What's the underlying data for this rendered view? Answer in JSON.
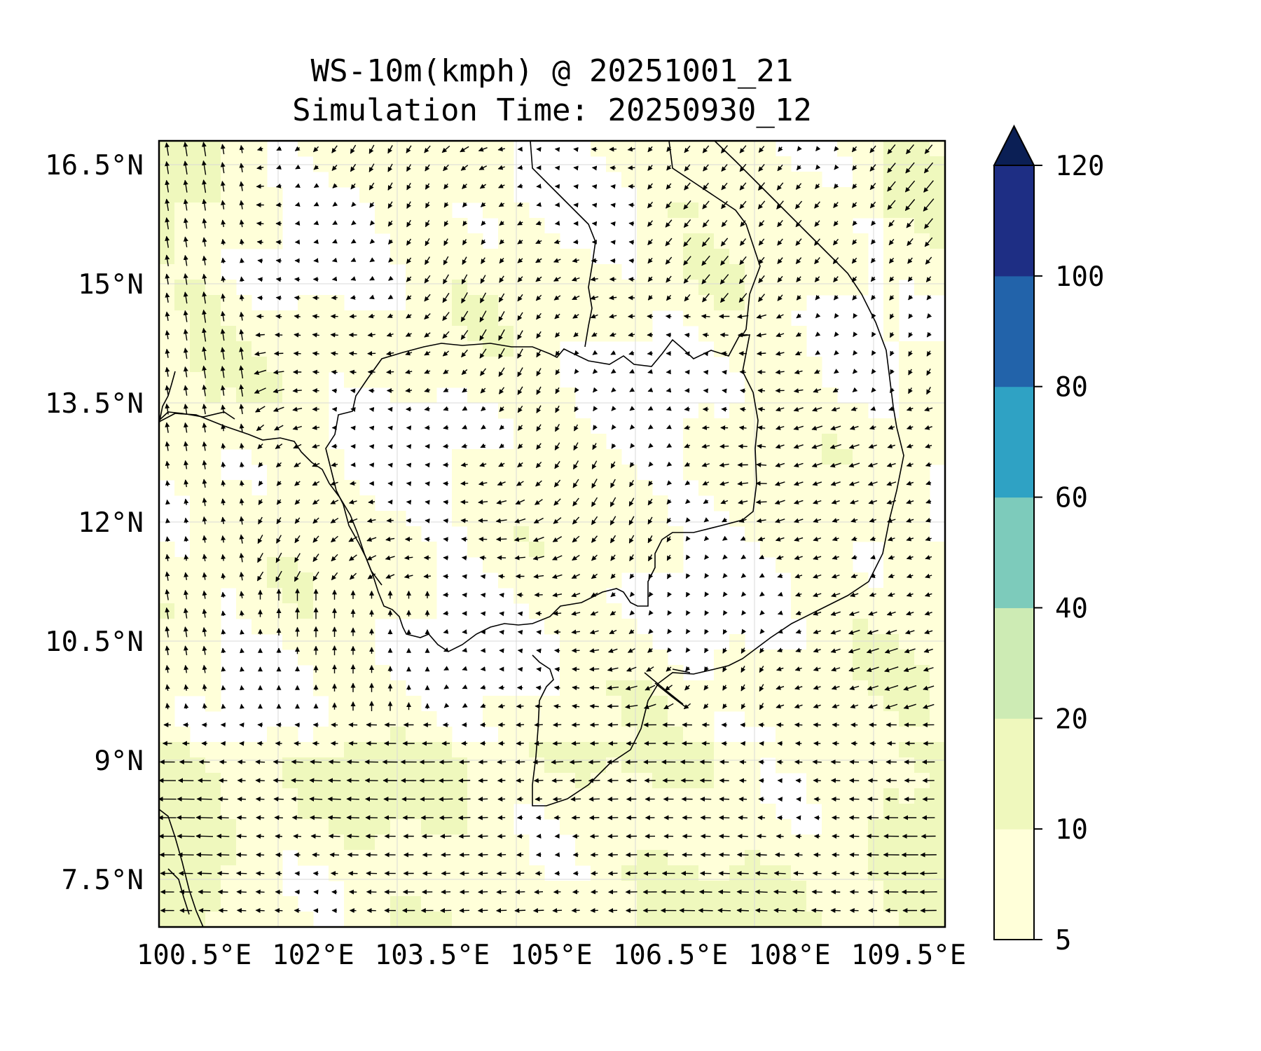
{
  "title_line1": "WS-10m(kmph) @ 20251001_21",
  "title_line2": "Simulation Time: 20250930_12",
  "chart_data": {
    "type": "map",
    "variable": "10 m wind speed with wind-direction vectors",
    "units": "kmph",
    "lon_range": [
      100.5,
      110.4
    ],
    "lat_range": [
      6.9,
      16.8
    ],
    "lon_ticks": [
      "100.5°E",
      "102°E",
      "103.5°E",
      "105°E",
      "106.5°E",
      "108°E",
      "109.5°E"
    ],
    "lon_tick_values": [
      100.5,
      102,
      103.5,
      105,
      106.5,
      108,
      109.5
    ],
    "lat_ticks": [
      "16.5°N",
      "15°N",
      "13.5°N",
      "12°N",
      "10.5°N",
      "9°N",
      "7.5°N"
    ],
    "lat_tick_values": [
      16.5,
      15,
      13.5,
      12,
      10.5,
      9,
      7.5
    ],
    "grid": true,
    "colorbar": {
      "position": "right",
      "levels": [
        "5",
        "10",
        "20",
        "40",
        "60",
        "80",
        "100",
        "120"
      ],
      "level_values": [
        5,
        10,
        20,
        40,
        60,
        80,
        100,
        120
      ],
      "colors": [
        "#ffffd9",
        "#eff8bd",
        "#cdebb4",
        "#7dcbbb",
        "#2fa2c4",
        "#2263aa",
        "#1e2e84"
      ],
      "extend_color": "#0b1f55",
      "extend": "max"
    },
    "fill_colors": {
      "below_5": "#ffffff",
      "band_5_10": "#ffffd9",
      "band_10_20": "#eff8bd"
    }
  }
}
